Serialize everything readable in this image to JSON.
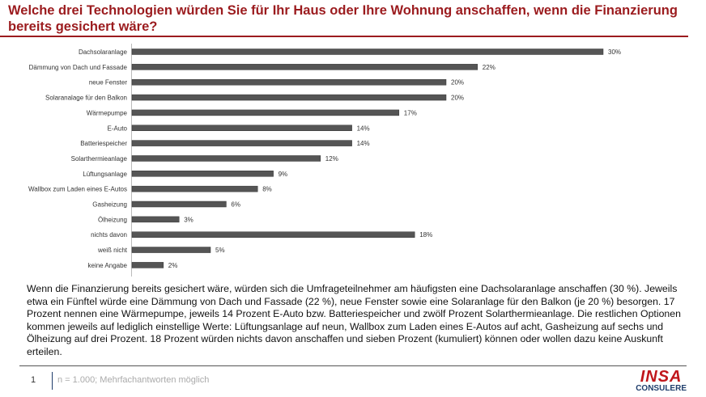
{
  "title": "Welche drei Technologien würden Sie für Ihr Haus oder Ihre Wohnung anschaffen, wenn die Finanzierung bereits gesichert wäre?",
  "chart_data": {
    "type": "bar",
    "orientation": "horizontal",
    "categories": [
      "Dachsolaranlage",
      "Dämmung von Dach und Fassade",
      "neue Fenster",
      "Solaranalage für den Balkon",
      "Wärmepumpe",
      "E-Auto",
      "Batteriespeicher",
      "Solarthermieanlage",
      "Lüftungsanlage",
      "Wallbox zum Laden eines E-Autos",
      "Gasheizung",
      "Ölheizung",
      "nichts davon",
      "weiß nicht",
      "keine Angabe"
    ],
    "values": [
      30,
      22,
      20,
      20,
      17,
      14,
      14,
      12,
      9,
      8,
      6,
      3,
      18,
      5,
      2
    ],
    "value_suffix": "%",
    "xlim": [
      0,
      30
    ],
    "color": "#555555"
  },
  "description": "Wenn die Finanzierung bereits gesichert wäre, würden sich die Umfrageteilnehmer am häufigsten eine Dachsolaranlage anschaffen (30 %). Jeweils etwa ein Fünftel würde eine Dämmung von Dach und Fassade (22 %), neue Fenster sowie eine Solaranlage für den Balkon (je 20 %) besorgen. 17 Prozent nennen eine Wärmepumpe, jeweils 14 Prozent E-Auto bzw. Batteriespeicher und zwölf Prozent Solarthermieanlage. Die restlichen Optionen kommen jeweils auf lediglich einstellige Werte: Lüftungsanlage auf neun, Wallbox zum Laden eines E-Autos auf acht, Gasheizung auf sechs und Ölheizung auf drei Prozent. 18 Prozent würden nichts davon anschaffen und sieben Prozent (kumuliert) können oder wollen dazu keine Auskunft erteilen.",
  "footer": {
    "page": "1",
    "note": "n = 1.000; Mehrfachantworten möglich"
  },
  "logo": {
    "line1": "INSA",
    "line2": "CONSULERE"
  }
}
